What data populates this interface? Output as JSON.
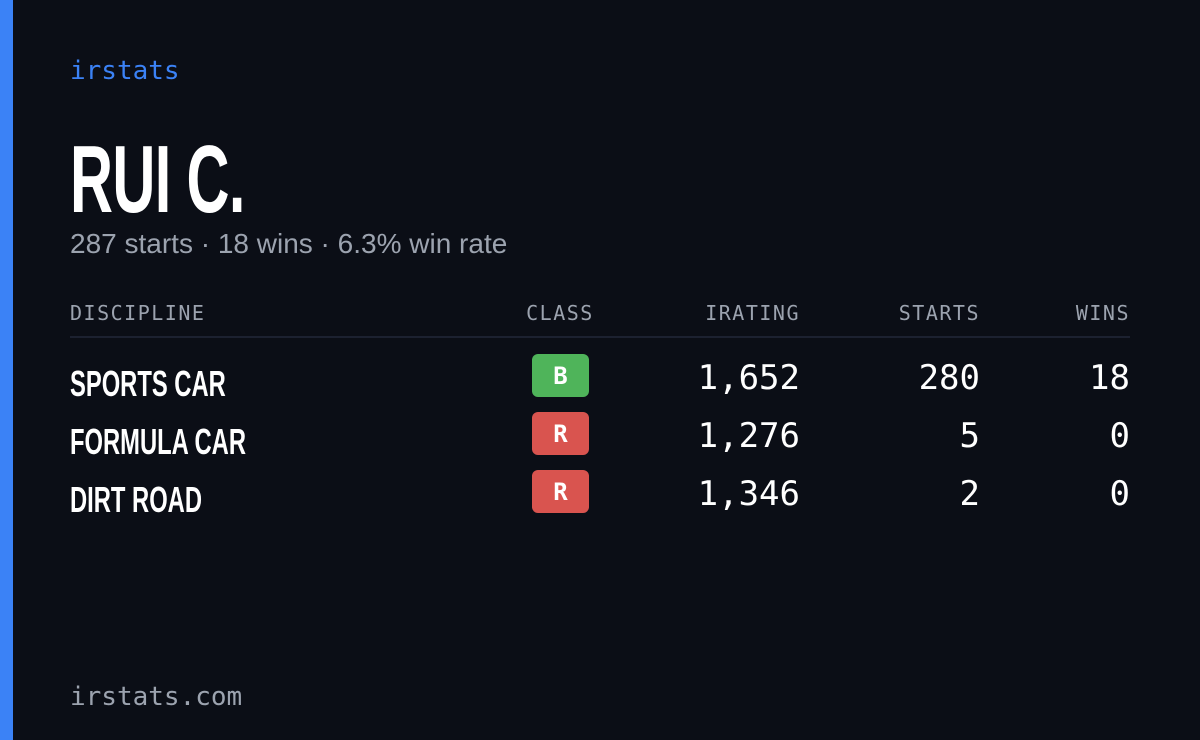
{
  "header": {
    "brand": "irstats",
    "name": "RUI C.",
    "summary": "287 starts · 18 wins · 6.3% win rate"
  },
  "table": {
    "columns": [
      "DISCIPLINE",
      "CLASS",
      "IRATING",
      "STARTS",
      "WINS"
    ],
    "rows": [
      [
        "SPORTS CAR",
        "B",
        "1,652",
        "280",
        "18"
      ],
      [
        "FORMULA CAR",
        "R",
        "1,276",
        "5",
        "0"
      ],
      [
        "DIRT ROAD",
        "R",
        "1,346",
        "2",
        "0"
      ]
    ],
    "class_colors": {
      "B": "#4fb45a",
      "R": "#d9544f"
    }
  },
  "footer": {
    "site": "irstats.com"
  }
}
